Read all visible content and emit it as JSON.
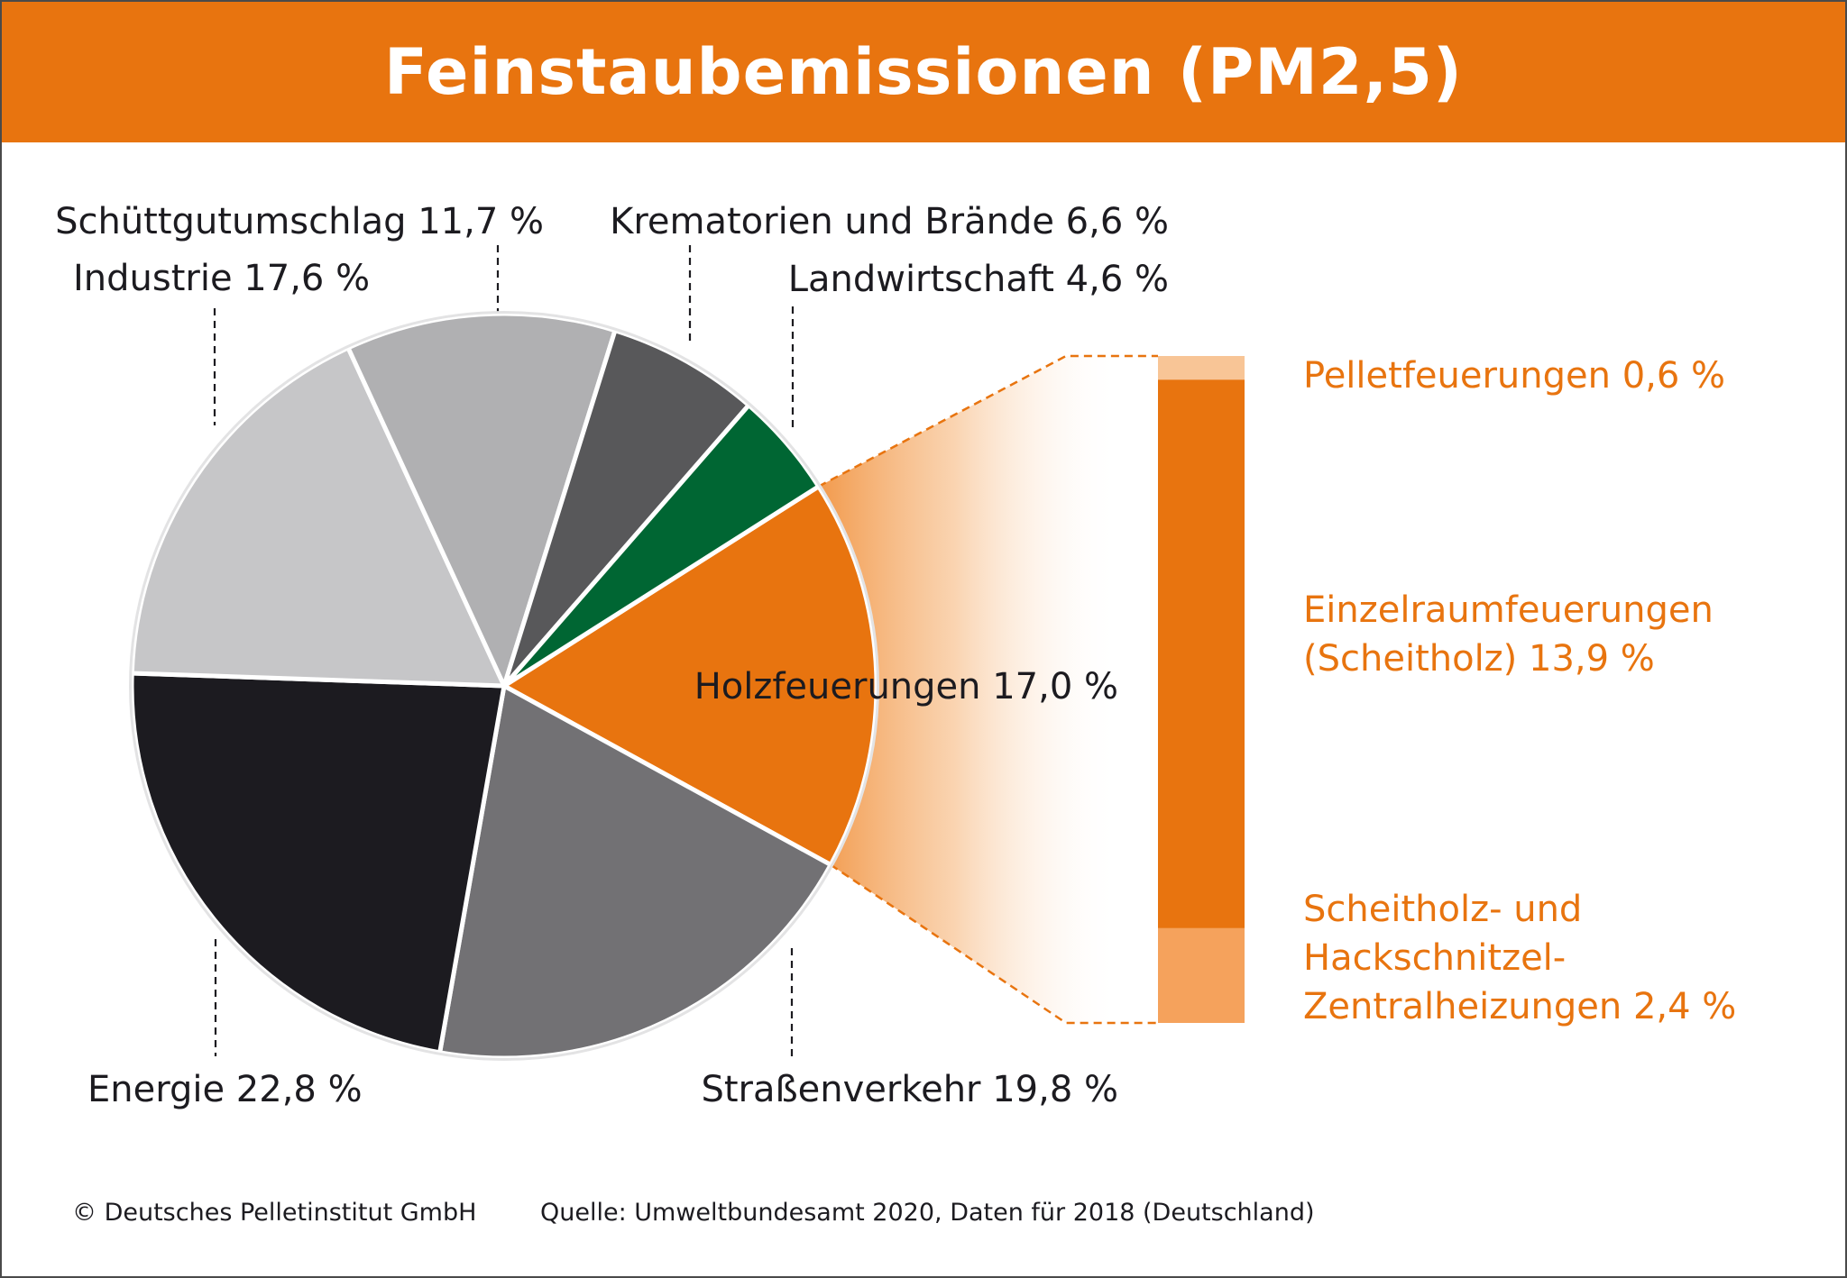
{
  "title": "Feinstaubemissionen (PM2,5)",
  "colors": {
    "accent": "#e8740f",
    "accent_light": "#f5a25c",
    "accent_pale": "#f8c596",
    "green": "#006633",
    "text": "#1c1b20"
  },
  "chart_data": [
    {
      "type": "pie",
      "slices": [
        {
          "label": "Holzfeuerungen",
          "value": 17.0,
          "value_text": "17,0 %",
          "color": "#e8740f"
        },
        {
          "label": "Straßenverkehr",
          "value": 19.8,
          "value_text": "19,8 %",
          "color": "#727174"
        },
        {
          "label": "Energie",
          "value": 22.8,
          "value_text": "22,8 %",
          "color": "#1c1b20"
        },
        {
          "label": "Industrie",
          "value": 17.6,
          "value_text": "17,6 %",
          "color": "#c6c6c8"
        },
        {
          "label": "Schüttgutumschlag",
          "value": 11.7,
          "value_text": "11,7 %",
          "color": "#b0b0b2"
        },
        {
          "label": "Krematorien und Brände",
          "value": 6.6,
          "value_text": "6,6 %",
          "color": "#58585a"
        },
        {
          "label": "Landwirtschaft",
          "value": 4.6,
          "value_text": "4,6 %",
          "color": "#006633"
        }
      ]
    },
    {
      "type": "bar",
      "stacked": true,
      "parent": "Holzfeuerungen",
      "segments": [
        {
          "label": "Pelletfeuerungen",
          "value": 0.6,
          "value_text": "0,6 %",
          "color": "#f8c596"
        },
        {
          "label": "Einzelraumfeuerungen (Scheitholz)",
          "value": 13.9,
          "value_text": "13,9 %",
          "color": "#e8740f"
        },
        {
          "label": "Scheitholz- und Hackschnitzel-Zentralheizungen",
          "value": 2.4,
          "value_text": "2,4 %",
          "color": "#f5a25c"
        }
      ]
    }
  ],
  "labels": {
    "pie": [
      {
        "lines": [
          "Holzfeuerungen 17,0 %"
        ]
      },
      {
        "lines": [
          "Straßenverkehr 19,8 %"
        ]
      },
      {
        "lines": [
          "Energie 22,8 %"
        ]
      },
      {
        "lines": [
          "Industrie 17,6 %"
        ]
      },
      {
        "lines": [
          "Schüttgutumschlag 11,7 %"
        ]
      },
      {
        "lines": [
          "Krematorien und Brände 6,6 %"
        ]
      },
      {
        "lines": [
          "Landwirtschaft 4,6 %"
        ]
      }
    ],
    "bar": [
      {
        "lines": [
          "Pelletfeuerungen 0,6 %"
        ]
      },
      {
        "lines": [
          "Einzelraumfeuerungen",
          "(Scheitholz) 13,9 %"
        ]
      },
      {
        "lines": [
          "Scheitholz- und",
          "Hackschnitzel-",
          "Zentralheizungen 2,4 %"
        ]
      }
    ]
  },
  "footer": {
    "copyright": "© Deutsches Pelletinstitut GmbH",
    "source": "Quelle: Umweltbundesamt 2020, Daten für 2018 (Deutschland)"
  }
}
